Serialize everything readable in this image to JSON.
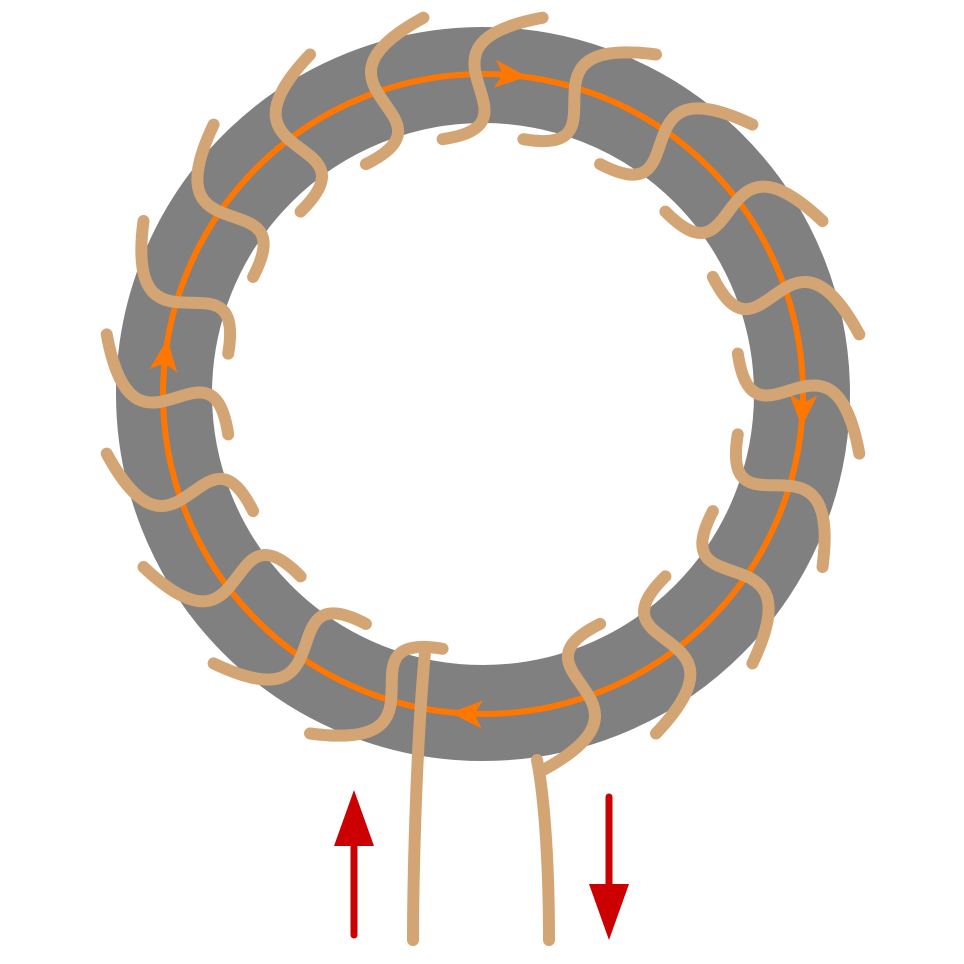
{
  "diagram": {
    "subject": "toroidal coil",
    "turn_count": 19,
    "flux_direction": "clockwise",
    "current_in_direction": "up",
    "current_out_direction": "down",
    "colors": {
      "background": "#ffffff",
      "core": "#808080",
      "wire": "#d4a574",
      "flux_path": "#ff7700",
      "current_arrow": "#cc0000"
    },
    "icons": {
      "flux_arrow": "arrowhead-icon",
      "current_in": "arrow-up-icon",
      "current_out": "arrow-down-icon"
    }
  }
}
